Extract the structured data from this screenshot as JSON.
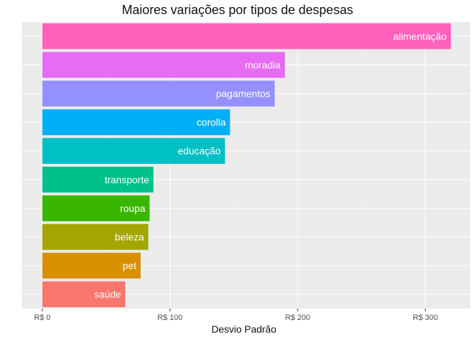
{
  "chart_data": {
    "type": "bar",
    "orientation": "horizontal",
    "title": "Maiores variações por tipos de despesas",
    "xlabel": "Desvio Padrão",
    "ylabel": "",
    "xlim": [
      -16,
      335
    ],
    "xticks": [
      0,
      100,
      200,
      300
    ],
    "xtick_labels": [
      "R$ 0",
      "R$ 100",
      "R$ 200",
      "R$ 300"
    ],
    "grid": true,
    "categories": [
      "alimentação",
      "moradia",
      "pagamentos",
      "corolla",
      "educação",
      "transporte",
      "roupa",
      "beleza",
      "pet",
      "saúde"
    ],
    "values": [
      320,
      190,
      182,
      147,
      143,
      87,
      84,
      83,
      77,
      65
    ],
    "colors": [
      "#FF62BC",
      "#E76BF3",
      "#9590FF",
      "#00B0F6",
      "#00BFC4",
      "#00C08B",
      "#39B600",
      "#A3A500",
      "#D89000",
      "#F8766D"
    ]
  }
}
